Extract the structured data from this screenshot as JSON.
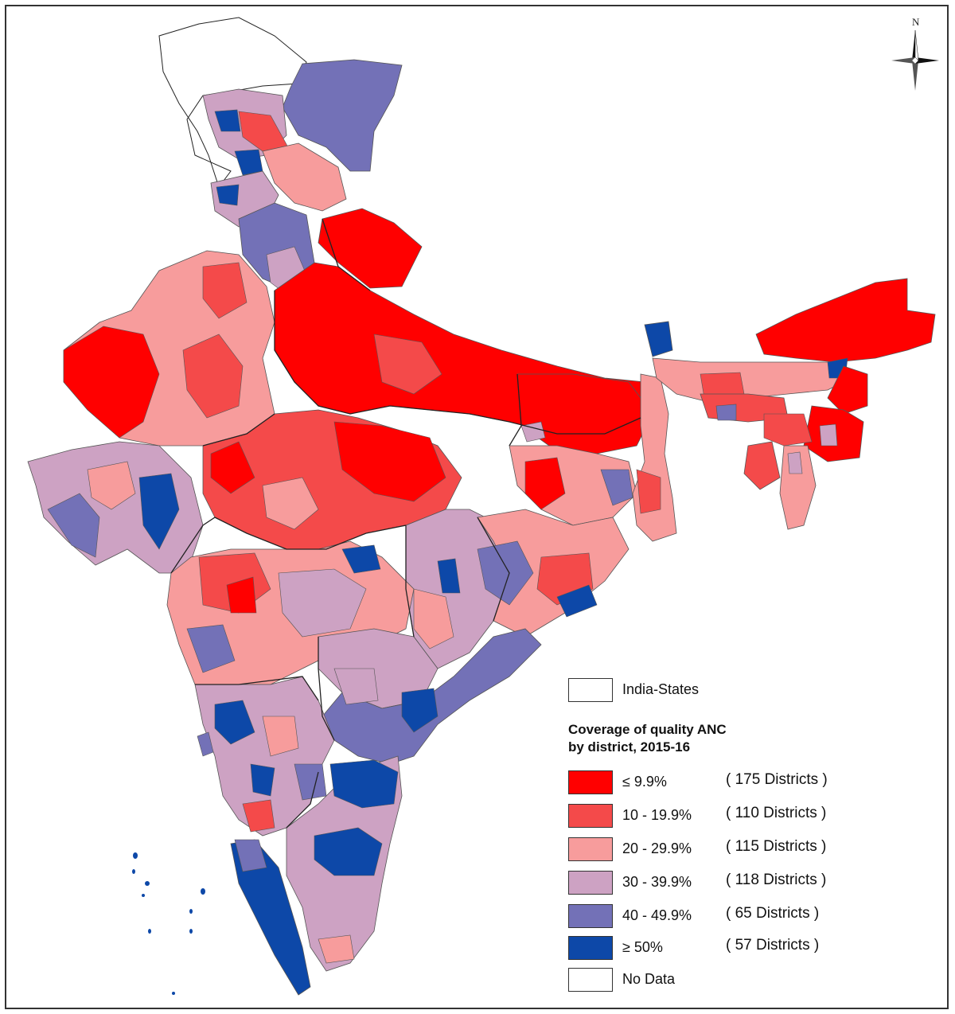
{
  "north_arrow": {
    "label": "N"
  },
  "legend": {
    "boundary_label": "India-States",
    "title_line1": "Coverage of quality ANC",
    "title_line2": "by district, 2015-16",
    "classes": [
      {
        "label": "≤ 9.9%",
        "count": "( 175 Districts )",
        "color": "#ff0000"
      },
      {
        "label": "10 - 19.9%",
        "count": "( 110 Districts )",
        "color": "#f44a4a"
      },
      {
        "label": "20 - 29.9%",
        "count": "( 115 Districts )",
        "color": "#f79c9c"
      },
      {
        "label": "30 - 39.9%",
        "count": "( 118 Districts )",
        "color": "#cda2c3"
      },
      {
        "label": "40 - 49.9%",
        "count": "( 65 Districts )",
        "color": "#7371b7"
      },
      {
        "label": "≥ 50%",
        "count": "( 57 Districts )",
        "color": "#0d48a8"
      }
    ],
    "no_data_label": "No Data"
  },
  "colors": {
    "border": "#444444",
    "background": "#ffffff"
  }
}
